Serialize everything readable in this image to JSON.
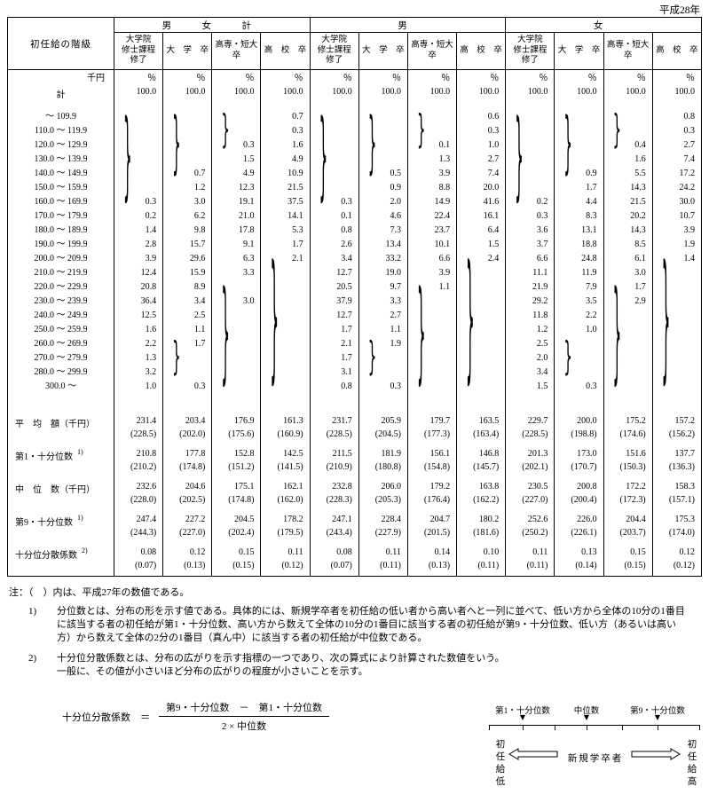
{
  "meta": {
    "era": "平成28年"
  },
  "table": {
    "corner": "初任給の階級",
    "unit": "千円",
    "pct": "％",
    "groups": [
      "男　女　計",
      "男",
      "女"
    ],
    "cols": [
      "大学院\n修士課程\n修了",
      "大　学　卒",
      "高専・短大卒",
      "高　校　卒"
    ],
    "total": {
      "label": "計",
      "values": [
        "100.0",
        "100.0",
        "100.0",
        "100.0",
        "100.0",
        "100.0",
        "100.0",
        "100.0",
        "100.0",
        "100.0",
        "100.0",
        "100.0"
      ]
    },
    "rows": [
      {
        "label": "～ 109.9",
        "v": [
          "",
          "",
          "",
          "0.7",
          "",
          "",
          "",
          "0.6",
          "",
          "",
          "",
          "0.8"
        ]
      },
      {
        "label": "110.0 ～ 119.9",
        "v": [
          "",
          "",
          "",
          "0.3",
          "",
          "",
          "",
          "0.3",
          "",
          "",
          "",
          "0.3"
        ]
      },
      {
        "label": "120.0 ～ 129.9",
        "v": [
          "",
          "",
          "0.3",
          "1.6",
          "",
          "",
          "0.1",
          "1.0",
          "",
          "",
          "0.4",
          "2.7"
        ]
      },
      {
        "label": "130.0 ～ 139.9",
        "v": [
          "",
          "",
          "1.5",
          "4.9",
          "",
          "",
          "1.3",
          "2.7",
          "",
          "",
          "1.6",
          "7.4"
        ]
      },
      {
        "label": "140.0 ～ 149.9",
        "v": [
          "",
          "0.7",
          "4.9",
          "10.9",
          "",
          "0.5",
          "3.9",
          "7.4",
          "",
          "0.9",
          "5.5",
          "17.2"
        ]
      },
      {
        "label": "150.0 ～ 159.9",
        "v": [
          "",
          "1.2",
          "12.3",
          "21.5",
          "",
          "0.9",
          "8.8",
          "20.0",
          "",
          "1.7",
          "14.3",
          "24.2"
        ]
      },
      {
        "label": "160.0 ～ 169.9",
        "v": [
          "0.3",
          "3.0",
          "19.1",
          "37.5",
          "0.3",
          "2.0",
          "14.9",
          "41.6",
          "0.2",
          "4.4",
          "21.5",
          "30.0"
        ]
      },
      {
        "label": "170.0 ～ 179.9",
        "v": [
          "0.2",
          "6.2",
          "21.0",
          "14.1",
          "0.1",
          "4.6",
          "22.4",
          "16.1",
          "0.3",
          "8.3",
          "20.2",
          "10.7"
        ]
      },
      {
        "label": "180.0 ～ 189.9",
        "v": [
          "1.4",
          "9.8",
          "17.8",
          "5.3",
          "0.8",
          "7.3",
          "23.7",
          "6.4",
          "3.6",
          "13.1",
          "14.3",
          "3.9"
        ]
      },
      {
        "label": "190.0 ～ 199.9",
        "v": [
          "2.8",
          "15.7",
          "9.1",
          "1.7",
          "2.6",
          "13.4",
          "10.1",
          "1.5",
          "3.7",
          "18.8",
          "8.5",
          "1.9"
        ]
      },
      {
        "label": "200.0 ～ 209.9",
        "v": [
          "3.9",
          "29.6",
          "6.3",
          "2.1",
          "3.4",
          "33.2",
          "6.6",
          "2.4",
          "6.6",
          "24.8",
          "6.1",
          "1.4"
        ]
      },
      {
        "label": "210.0 ～ 219.9",
        "v": [
          "12.4",
          "15.9",
          "3.3",
          "",
          "12.7",
          "19.0",
          "3.9",
          "",
          "11.1",
          "11.9",
          "3.0",
          ""
        ]
      },
      {
        "label": "220.0 ～ 229.9",
        "v": [
          "20.8",
          "8.9",
          "",
          "",
          "20.5",
          "9.7",
          "1.1",
          "",
          "21.9",
          "7.9",
          "1.7",
          ""
        ]
      },
      {
        "label": "230.0 ～ 239.9",
        "v": [
          "36.4",
          "3.4",
          "3.0",
          "",
          "37.9",
          "3.3",
          "",
          "",
          "29.2",
          "3.5",
          "2.9",
          ""
        ]
      },
      {
        "label": "240.0 ～ 249.9",
        "v": [
          "12.5",
          "2.5",
          "",
          "",
          "12.7",
          "2.7",
          "",
          "",
          "11.8",
          "2.2",
          "",
          ""
        ]
      },
      {
        "label": "250.0 ～ 259.9",
        "v": [
          "1.6",
          "1.1",
          "",
          "",
          "1.7",
          "1.1",
          "",
          "",
          "1.2",
          "1.0",
          "",
          ""
        ]
      },
      {
        "label": "260.0 ～ 269.9",
        "v": [
          "2.2",
          "1.7",
          "",
          "",
          "2.1",
          "1.9",
          "",
          "",
          "2.5",
          "",
          "",
          ""
        ]
      },
      {
        "label": "270.0 ～ 279.9",
        "v": [
          "1.3",
          "",
          "",
          "",
          "1.7",
          "",
          "",
          "",
          "2.0",
          "",
          "",
          ""
        ]
      },
      {
        "label": "280.0 ～ 299.9",
        "v": [
          "3.2",
          "",
          "",
          "",
          "3.1",
          "",
          "",
          "",
          "3.4",
          "",
          "",
          ""
        ]
      },
      {
        "label": "300.0 ～",
        "v": [
          "1.0",
          "0.3",
          "",
          "",
          "0.8",
          "0.3",
          "",
          "",
          "1.5",
          "0.3",
          "",
          ""
        ]
      }
    ],
    "braces": [
      {
        "c": 0,
        "s": 0,
        "e": 6
      },
      {
        "c": 1,
        "s": 0,
        "e": 4
      },
      {
        "c": 2,
        "s": 0,
        "e": 2
      },
      {
        "c": 3,
        "s": 10,
        "e": 19
      },
      {
        "c": 2,
        "s": 12,
        "e": 19
      },
      {
        "c": 1,
        "s": 16,
        "e": 18
      },
      {
        "c": 4,
        "s": 0,
        "e": 6
      },
      {
        "c": 5,
        "s": 0,
        "e": 4
      },
      {
        "c": 6,
        "s": 0,
        "e": 2
      },
      {
        "c": 7,
        "s": 10,
        "e": 19
      },
      {
        "c": 6,
        "s": 12,
        "e": 19
      },
      {
        "c": 5,
        "s": 16,
        "e": 18
      },
      {
        "c": 8,
        "s": 0,
        "e": 6
      },
      {
        "c": 9,
        "s": 0,
        "e": 4
      },
      {
        "c": 10,
        "s": 0,
        "e": 2
      },
      {
        "c": 11,
        "s": 10,
        "e": 19
      },
      {
        "c": 10,
        "s": 12,
        "e": 19
      },
      {
        "c": 9,
        "s": 16,
        "e": 18
      }
    ],
    "summary": [
      {
        "label": "平　均　額（千円）",
        "sup": "",
        "v": [
          "231.4",
          "203.4",
          "176.9",
          "161.3",
          "231.7",
          "205.9",
          "179.7",
          "163.5",
          "229.7",
          "200.0",
          "175.2",
          "157.2"
        ],
        "p": [
          "(228.5)",
          "(202.0)",
          "(175.6)",
          "(160.9)",
          "(228.5)",
          "(204.5)",
          "(177.3)",
          "(163.4)",
          "(228.5)",
          "(198.8)",
          "(174.6)",
          "(156.2)"
        ]
      },
      {
        "label": "第1・十分位数",
        "sup": "1)",
        "v": [
          "210.8",
          "177.8",
          "152.8",
          "142.5",
          "211.5",
          "181.9",
          "156.1",
          "146.8",
          "201.3",
          "173.0",
          "151.6",
          "137.7"
        ],
        "p": [
          "(210.2)",
          "(174.8)",
          "(151.2)",
          "(141.5)",
          "(210.9)",
          "(180.8)",
          "(154.8)",
          "(145.7)",
          "(202.1)",
          "(170.7)",
          "(150.3)",
          "(136.3)"
        ]
      },
      {
        "label": "中　位　数（千円）",
        "sup": "",
        "v": [
          "232.6",
          "204.6",
          "175.1",
          "162.1",
          "232.8",
          "206.0",
          "179.2",
          "163.8",
          "230.5",
          "200.8",
          "172.2",
          "158.3"
        ],
        "p": [
          "(228.0)",
          "(202.5)",
          "(174.8)",
          "(162.0)",
          "(228.3)",
          "(205.3)",
          "(176.4)",
          "(162.2)",
          "(227.0)",
          "(200.4)",
          "(172.3)",
          "(157.1)"
        ]
      },
      {
        "label": "第9・十分位数",
        "sup": "1)",
        "v": [
          "247.4",
          "227.2",
          "204.5",
          "178.2",
          "247.1",
          "228.4",
          "204.7",
          "180.2",
          "252.6",
          "226.0",
          "204.4",
          "175.3"
        ],
        "p": [
          "(244.3)",
          "(227.0)",
          "(202.4)",
          "(179.5)",
          "(243.4)",
          "(227.9)",
          "(201.5)",
          "(181.6)",
          "(250.2)",
          "(226.1)",
          "(203.7)",
          "(174.0)"
        ]
      },
      {
        "label": "十分位分散係数",
        "sup": "2)",
        "v": [
          "0.08",
          "0.12",
          "0.15",
          "0.11",
          "0.08",
          "0.11",
          "0.14",
          "0.10",
          "0.11",
          "0.13",
          "0.15",
          "0.12"
        ],
        "p": [
          "(0.07)",
          "(0.13)",
          "(0.15)",
          "(0.12)",
          "(0.07)",
          "(0.11)",
          "(0.13)",
          "(0.11)",
          "(0.11)",
          "(0.14)",
          "(0.15)",
          "(0.12)"
        ]
      }
    ]
  },
  "notes": {
    "head": "注：（　）内は、平成27年の数値である。",
    "n1_label": "1)",
    "n1_text": "分位数とは、分布の形を示す値である。具体的には、新規学卒者を初任給の低い者から高い者へと一列に並べて、低い方から全体の10分の1番目に該当する者の初任給が第1・十分位数、高い方から数えて全体の10分の1番目に該当する者の初任給が第9・十分位数、低い方（あるいは高い方）から数えて全体の2分の1番目（真ん中）に該当する者の初任給が中位数である。",
    "n2_label": "2)",
    "n2_line1": "十分位分散係数とは、分布の広がりを示す指標の一つであり、次の算式により計算された数値をいう。",
    "n2_line2": "一般に、その値が小さいほど分布の広がりの程度が小さいことを示す。"
  },
  "formula": {
    "lhs": "十分位分散係数　＝",
    "numerator": "第9・十分位数　－　第1・十分位数",
    "denominator": "2 × 中位数"
  },
  "diagram": {
    "labels": [
      "第1・十分位数",
      "中位数",
      "第9・十分位数"
    ],
    "marker": "▼",
    "center": "新規学卒者",
    "left_vert": "初任給",
    "left_end": "低",
    "right_vert": "初任給",
    "right_end": "高"
  }
}
